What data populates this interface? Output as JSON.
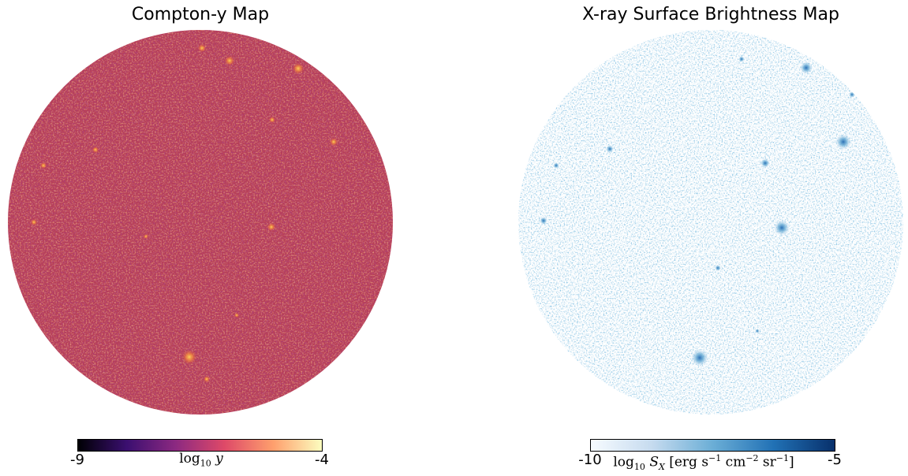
{
  "panels": [
    {
      "title": "Compton-y Map",
      "colormap": "inferno",
      "background_color": "#b73f58",
      "colorbar": {
        "min_label": "-9",
        "max_label": "-4",
        "label": "log10 y",
        "colors": [
          "#000004",
          "#3b0f70",
          "#8c2981",
          "#de4968",
          "#fe9f6d",
          "#fcfdbf"
        ]
      }
    },
    {
      "title": "X-ray Surface Brightness Map",
      "colormap": "Blues",
      "background_color": "#ffffff",
      "colorbar": {
        "min_label": "-10",
        "max_label": "-5",
        "label": "log10 SX [erg s−1 cm−2 sr−1]",
        "colors": [
          "#f7fbff",
          "#c6dbef",
          "#6baed6",
          "#2171b5",
          "#08306b"
        ]
      }
    }
  ]
}
